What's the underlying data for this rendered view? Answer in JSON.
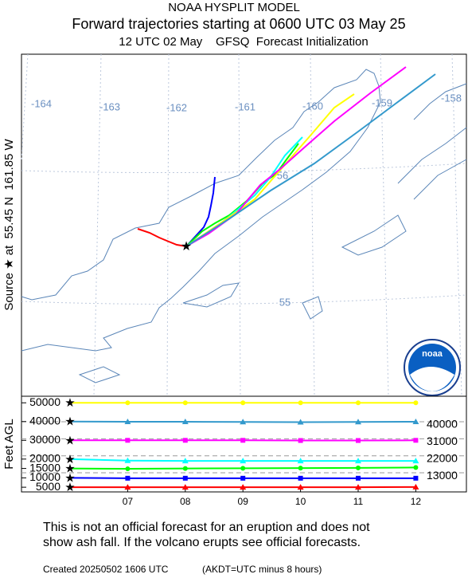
{
  "header": {
    "title": "NOAA HYSPLIT MODEL",
    "subtitle": "Forward trajectories starting at 0600 UTC 03 May 25",
    "subtitle2": "12 UTC 02 May    GFSQ  Forecast Initialization"
  },
  "side_label": "Source ★ at  55.45 N  161.85 W",
  "map": {
    "lon_labels": [
      "-164",
      "-163",
      "-162",
      "-161",
      "-160",
      "-159",
      "-158"
    ],
    "lat_labels": [
      "56",
      "55"
    ],
    "logo": "noaa"
  },
  "chart_data": {
    "type": "line",
    "ylabel": "Feet AGL",
    "categories": [
      null,
      "07",
      "08",
      "09",
      "10",
      "11",
      "12"
    ],
    "ylim": [
      2500,
      53500
    ],
    "yticks": [
      50000,
      40000,
      30000,
      20000,
      15000,
      10000,
      5000
    ],
    "y2lim": [
      2900,
      53500
    ],
    "y2ticks": [
      40000,
      31000,
      22000,
      13000
    ],
    "series": [
      {
        "color": "#ffff00",
        "marker": "circle",
        "values": [
          50000,
          50000,
          50000,
          50000,
          50000,
          50000,
          50000
        ]
      },
      {
        "color": "#3399cc",
        "marker": "triangle",
        "values": [
          40000,
          39900,
          39900,
          39800,
          39700,
          39800,
          39900
        ]
      },
      {
        "color": "#ff00ff",
        "marker": "square",
        "values": [
          30000,
          30000,
          30000,
          30000,
          29900,
          29900,
          30000
        ]
      },
      {
        "color": "#00ffff",
        "marker": "triangle",
        "values": [
          20000,
          19200,
          19000,
          19000,
          19000,
          19000,
          19000
        ]
      },
      {
        "color": "#00ff00",
        "marker": "circle",
        "values": [
          15000,
          14800,
          15000,
          15100,
          15200,
          15300,
          15500
        ]
      },
      {
        "color": "#0000ff",
        "marker": "square",
        "values": [
          10000,
          9800,
          9800,
          9800,
          9800,
          9800,
          9800
        ]
      },
      {
        "color": "#ff0000",
        "marker": "triangle",
        "values": [
          5000,
          5000,
          5000,
          5000,
          5000,
          5000,
          5100
        ]
      }
    ]
  },
  "footer": {
    "line1": "This is not an official forecast for an eruption and does not",
    "line2": "show ash fall. If the volcano erupts see official forecasts.",
    "created": "Created 20250502 1606 UTC",
    "note": "(AKDT=UTC minus 8 hours)"
  }
}
